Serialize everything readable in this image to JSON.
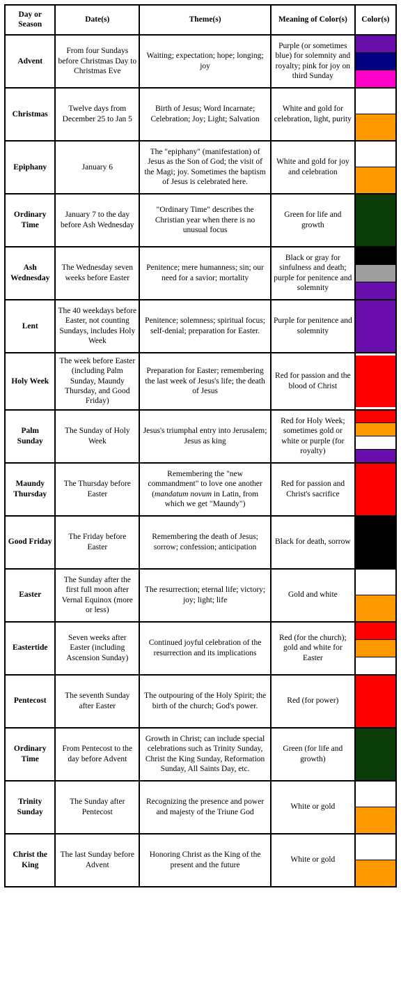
{
  "headers": {
    "name": "Day or Season",
    "dates": "Date(s)",
    "themes": "Theme(s)",
    "meaning": "Meaning of Color(s)",
    "colors": "Color(s)"
  },
  "rows": [
    {
      "name": "Advent",
      "dates": "From four Sundays before Christmas Day to Christmas Eve",
      "themes": "Waiting; expectation; hope; longing; joy",
      "meaning": "Purple (or sometimes blue) for solemnity and royalty; pink for joy on third Sunday",
      "colors": [
        "#6a0dad",
        "#000080",
        "#ff00c8"
      ]
    },
    {
      "name": "Christmas",
      "dates": "Twelve days from December 25 to Jan 5",
      "themes": "Birth of Jesus; Word Incarnate; Celebration; Joy; Light; Salvation",
      "meaning": "White and gold for celebration, light, purity",
      "colors": [
        "#ffffff",
        "#ff9900"
      ]
    },
    {
      "name": "Epiphany",
      "dates": "January 6",
      "themes": "The \"epiphany\" (manifestation) of Jesus as the Son of God; the visit of the Magi; joy. Sometimes the baptism of Jesus is celebrated here.",
      "meaning": "White and gold for joy and celebration",
      "colors": [
        "#ffffff",
        "#ff9900"
      ]
    },
    {
      "name": "Ordinary Time",
      "dates": "January 7 to the day before Ash Wednesday",
      "themes": "\"Ordinary Time\" describes the Christian year when there is no unusual focus",
      "meaning": "Green for life and growth",
      "colors": [
        "#0b3d0b"
      ]
    },
    {
      "name": "Ash Wednesday",
      "dates": "The Wednesday seven weeks before Easter",
      "themes": "Penitence; mere humanness; sin; our need for a savior; mortality",
      "meaning": "Black or gray for sinfulness and death; purple for penitence and solemnity",
      "colors": [
        "#000000",
        "#9e9e9e",
        "#6a0dad"
      ]
    },
    {
      "name": "Lent",
      "dates": "The 40 weekdays before Easter, not counting Sundays, includes Holy Week",
      "themes": "Penitence; solemness; spiritual focus; self-denial; preparation for Easter.",
      "meaning": "Purple for penitence and solemnity",
      "colors": [
        "#6a0dad"
      ]
    },
    {
      "name": "Holy Week",
      "dates": "The week before Easter (including Palm Sunday, Maundy Thursday, and Good Friday)",
      "themes": "Preparation for Easter; remembering the last week of Jesus's life; the death of Jesus",
      "meaning": "Red for passion and the blood of Christ",
      "colors": [
        "#ff0000"
      ]
    },
    {
      "name": "Palm Sunday",
      "dates": "The Sunday of Holy Week",
      "themes": "Jesus's triumphal entry into Jerusalem; Jesus as king",
      "meaning": "Red for Holy Week; sometimes gold or white or purple (for royalty)",
      "colors": [
        "#ff0000",
        "#ff9900",
        "#ffffff",
        "#6a0dad"
      ]
    },
    {
      "name": "Maundy Thursday",
      "dates": "The Thursday before Easter",
      "themes_html": "Remembering the \"new commandment\" to love one another (<em class='latin'>mandatum novum</em> in Latin, from which we get \"Maundy\")",
      "meaning": "Red for passion and Christ's sacrifice",
      "colors": [
        "#ff0000"
      ]
    },
    {
      "name": "Good Friday",
      "dates": "The Friday before Easter",
      "themes": "Remembering the death of Jesus; sorrow; confession; anticipation",
      "meaning": "Black for death, sorrow",
      "colors": [
        "#000000"
      ]
    },
    {
      "name": "Easter",
      "dates": "The Sunday after the first full moon after Vernal Equinox (more or less)",
      "themes": "The resurrection; eternal life; victory; joy; light; life",
      "meaning": "Gold and white",
      "colors": [
        "#ffffff",
        "#ff9900"
      ]
    },
    {
      "name": "Eastertide",
      "dates": "Seven weeks after Easter (including Ascension Sunday)",
      "themes": "Continued joyful celebration of the resurrection and its implications",
      "meaning": "Red (for the church); gold and white for Easter",
      "colors": [
        "#ff0000",
        "#ff9900",
        "#ffffff"
      ]
    },
    {
      "name": "Pentecost",
      "dates": "The seventh Sunday after Easter",
      "themes": "The outpouring of the Holy Spirit; the birth of the church; God's power.",
      "meaning": "Red (for power)",
      "colors": [
        "#ff0000"
      ]
    },
    {
      "name": "Ordinary Time",
      "dates": "From Pentecost to the day before Advent",
      "themes": "Growth in Christ; can include special celebrations such as Trinity Sunday, Christ the King Sunday, Reformation Sunday, All Saints Day, etc.",
      "meaning": "Green (for life and growth)",
      "colors": [
        "#0b3d0b"
      ]
    },
    {
      "name": "Trinity Sunday",
      "dates": "The Sunday after Pentecost",
      "themes": "Recognizing the presence and power and majesty of the Triune God",
      "meaning": "White or gold",
      "colors": [
        "#ffffff",
        "#ff9900"
      ]
    },
    {
      "name": "Christ the King",
      "dates": "The last Sunday before Advent",
      "themes": "Honoring Christ as the King of the present and the future",
      "meaning": "White or gold",
      "colors": [
        "#ffffff",
        "#ff9900"
      ]
    }
  ]
}
